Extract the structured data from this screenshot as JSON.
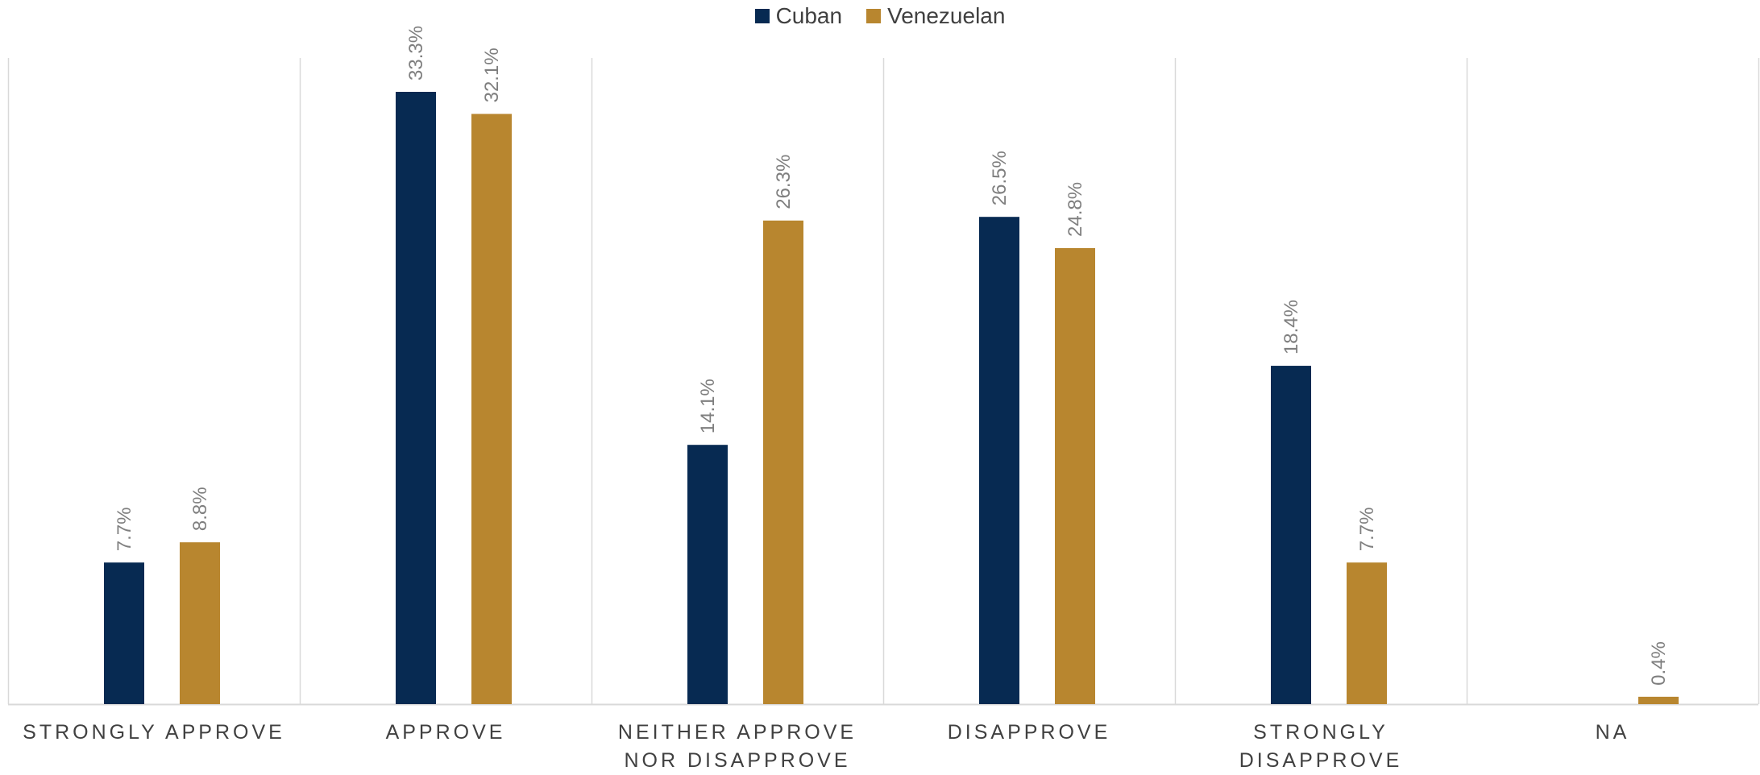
{
  "chart_data": {
    "type": "bar",
    "categories": [
      "STRONGLY APPROVE",
      "APPROVE",
      "NEITHER APPROVE NOR DISAPPROVE",
      "DISAPPROVE",
      "STRONGLY DISAPPROVE",
      "NA"
    ],
    "series": [
      {
        "name": "Cuban",
        "values": [
          7.7,
          33.3,
          14.1,
          26.5,
          18.4,
          null
        ],
        "labels": [
          "7.7%",
          "33.3%",
          "14.1%",
          "26.5%",
          "18.4%",
          ""
        ]
      },
      {
        "name": "Venezuelan",
        "values": [
          8.8,
          32.1,
          26.3,
          24.8,
          7.7,
          0.4
        ],
        "labels": [
          "8.8%",
          "32.1%",
          "26.3%",
          "24.8%",
          "7.7%",
          "0.4%"
        ]
      }
    ],
    "ylim": [
      0,
      35
    ],
    "legend_position": "top-center",
    "vertical_category_gridlines": true,
    "colors": {
      "Cuban": "#072a52",
      "Venezuelan": "#b8862f",
      "grid": "#d9d9d9",
      "label": "#7f7f7f",
      "text": "#404040"
    }
  }
}
